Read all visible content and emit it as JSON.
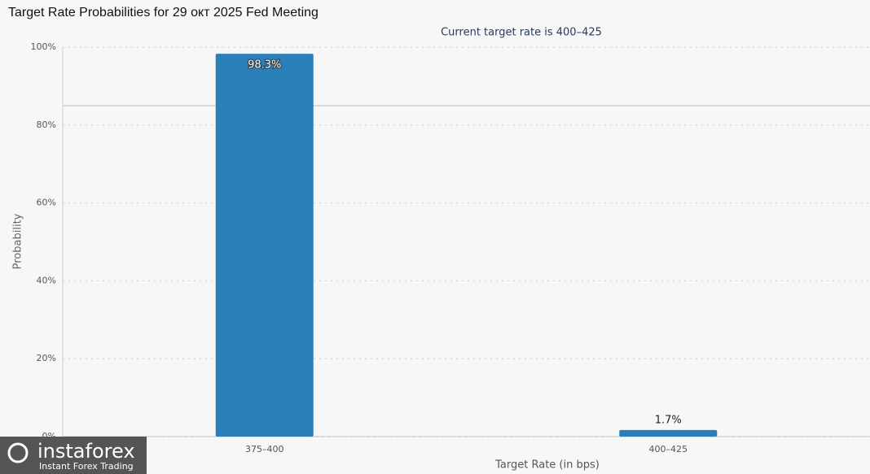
{
  "chart_data": {
    "type": "bar",
    "title": "Target Rate Probabilities for 29 окт 2025 Fed Meeting",
    "subtitle": "Current target rate is 400–425",
    "x_label": "Target Rate (in bps)",
    "y_label": "Probability",
    "categories": [
      "375–400",
      "400–425"
    ],
    "values": [
      98.3,
      1.7
    ],
    "value_labels": [
      "98.3%",
      "1.7%"
    ],
    "color": "#2a7fb8",
    "ylim": [
      0,
      100
    ],
    "yticks": [
      {
        "value": 0,
        "label": "0%"
      },
      {
        "value": 20,
        "label": "20%"
      },
      {
        "value": 40,
        "label": "40%"
      },
      {
        "value": 60,
        "label": "60%"
      },
      {
        "value": 80,
        "label": "80%"
      },
      {
        "value": 100,
        "label": "100%"
      }
    ],
    "grid": true
  },
  "watermark": {
    "brand": "instaforex",
    "tagline": "Instant Forex Trading"
  }
}
